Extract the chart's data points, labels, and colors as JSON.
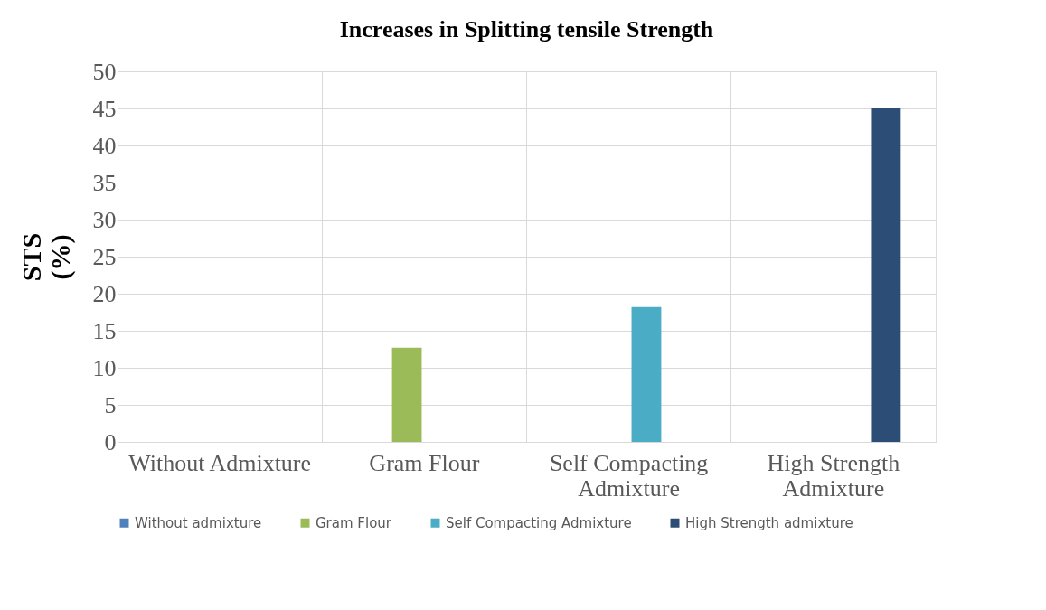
{
  "chart_data": {
    "type": "bar",
    "title": "Increases in Splitting tensile  Strength",
    "ylabel": "STS (%)",
    "categories": [
      "Without Admixture",
      "Gram Flour",
      "Self Compacting Admixture",
      "High Strength Admixture"
    ],
    "series": [
      {
        "name": "Without admixture",
        "color": "#4f81bd",
        "values": [
          0,
          null,
          null,
          null
        ]
      },
      {
        "name": "Gram Flour",
        "color": "#9bbb59",
        "values": [
          null,
          12.7,
          null,
          null
        ]
      },
      {
        "name": "Self Compacting Admixture",
        "color": "#4bacc6",
        "values": [
          null,
          null,
          18.2,
          null
        ]
      },
      {
        "name": "High Strength admixture",
        "color": "#2c4d75",
        "values": [
          null,
          null,
          null,
          45.1
        ]
      }
    ],
    "ylim": [
      0,
      50
    ],
    "yticks": [
      0,
      5,
      10,
      15,
      20,
      25,
      30,
      35,
      40,
      45,
      50
    ],
    "grid": true,
    "legend": "bottom"
  }
}
